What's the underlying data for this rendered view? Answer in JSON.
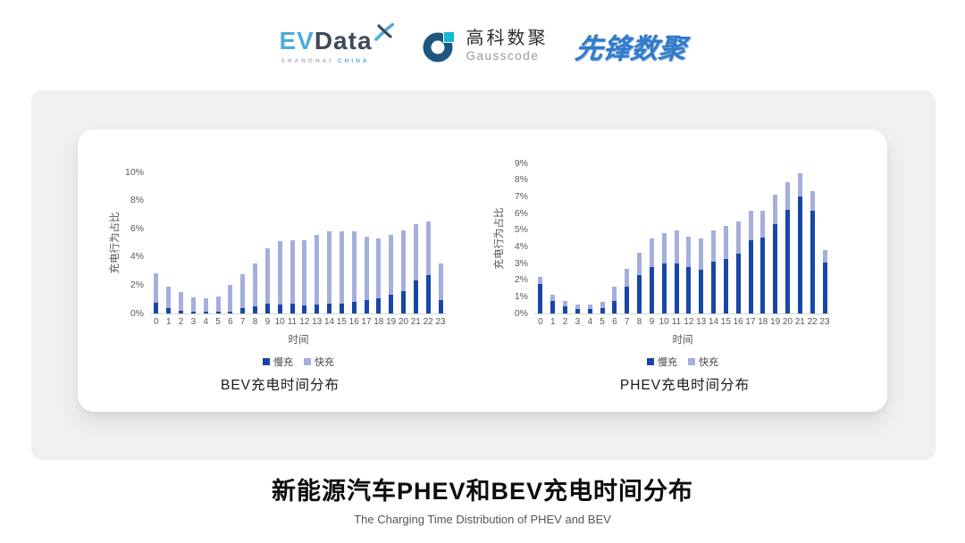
{
  "header": {
    "evdata": {
      "ev": "EV",
      "data": "Data",
      "sub_left": "SHANGHAI",
      "sub_right": "CHINA"
    },
    "gausscode": {
      "cn": "高科数聚",
      "en": "Gausscode"
    },
    "xianfeng": {
      "text": "先锋数聚"
    }
  },
  "colors": {
    "slow_charge": "#1747A6",
    "fast_charge": "#A5AFDC",
    "axis_text": "#595959",
    "baseline": "#d4d4d4"
  },
  "chart_data": [
    {
      "type": "bar",
      "stacked": true,
      "title": "BEV充电时间分布",
      "xlabel": "时间",
      "ylabel": "充电行为占比",
      "ylim": [
        0,
        10
      ],
      "yticks": [
        0,
        2,
        4,
        6,
        8,
        10
      ],
      "ytick_suffix": "%",
      "grid": false,
      "legend_position": "bottom",
      "categories": [
        "0",
        "1",
        "2",
        "3",
        "4",
        "5",
        "6",
        "7",
        "8",
        "9",
        "10",
        "11",
        "12",
        "13",
        "14",
        "15",
        "16",
        "17",
        "18",
        "19",
        "20",
        "21",
        "22",
        "23"
      ],
      "series": [
        {
          "name": "慢充",
          "color": "#1747A6",
          "values": [
            0.75,
            0.35,
            0.2,
            0.1,
            0.1,
            0.1,
            0.15,
            0.35,
            0.5,
            0.7,
            0.65,
            0.7,
            0.6,
            0.65,
            0.7,
            0.7,
            0.8,
            0.95,
            1.1,
            1.3,
            1.6,
            2.35,
            2.7,
            0.95
          ]
        },
        {
          "name": "快充",
          "color": "#A5AFDC",
          "values": [
            2.1,
            1.55,
            1.3,
            1.05,
            0.95,
            1.1,
            1.85,
            2.45,
            3.05,
            3.9,
            4.5,
            4.5,
            4.6,
            4.95,
            5.1,
            5.1,
            5.0,
            4.5,
            4.2,
            4.25,
            4.3,
            3.95,
            3.8,
            2.6
          ]
        }
      ]
    },
    {
      "type": "bar",
      "stacked": true,
      "title": "PHEV充电时间分布",
      "xlabel": "时间",
      "ylabel": "充电行为占比",
      "ylim": [
        0,
        9
      ],
      "yticks": [
        0,
        1,
        2,
        3,
        4,
        5,
        6,
        7,
        8,
        9
      ],
      "ytick_suffix": "%",
      "grid": false,
      "legend_position": "bottom",
      "categories": [
        "0",
        "1",
        "2",
        "3",
        "4",
        "5",
        "6",
        "7",
        "8",
        "9",
        "10",
        "11",
        "12",
        "13",
        "14",
        "15",
        "16",
        "17",
        "18",
        "19",
        "20",
        "21",
        "22",
        "23"
      ],
      "series": [
        {
          "name": "慢充",
          "color": "#1747A6",
          "values": [
            1.75,
            0.75,
            0.45,
            0.25,
            0.25,
            0.3,
            0.75,
            1.6,
            2.3,
            2.8,
            3.0,
            3.0,
            2.8,
            2.65,
            3.1,
            3.25,
            3.6,
            4.4,
            4.55,
            5.35,
            6.2,
            7.0,
            6.15,
            3.05
          ]
        },
        {
          "name": "快充",
          "color": "#A5AFDC",
          "values": [
            0.45,
            0.4,
            0.3,
            0.3,
            0.3,
            0.4,
            0.85,
            1.1,
            1.35,
            1.7,
            1.8,
            2.0,
            1.8,
            1.85,
            1.9,
            2.0,
            1.9,
            1.75,
            1.6,
            1.75,
            1.7,
            1.4,
            1.2,
            0.75
          ]
        }
      ]
    }
  ],
  "footer": {
    "title": "新能源汽车PHEV和BEV充电时间分布",
    "subtitle": "The Charging Time Distribution of PHEV and BEV"
  }
}
